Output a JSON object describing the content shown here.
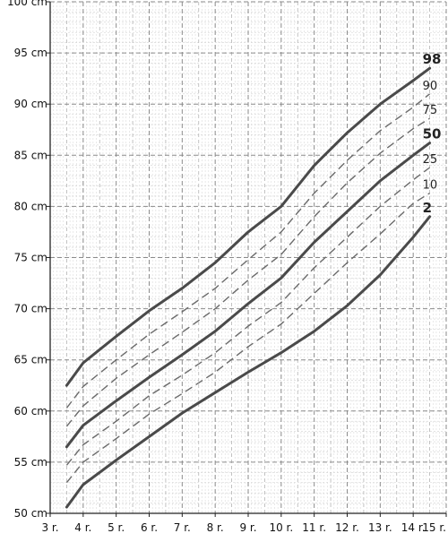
{
  "chart_data": {
    "type": "line",
    "title": "",
    "xlabel": "",
    "ylabel": "",
    "y_unit": "cm",
    "x_unit": "r.",
    "xlim": [
      3,
      15
    ],
    "ylim": [
      50,
      100
    ],
    "grid": true,
    "x_ticks": [
      {
        "value": 3,
        "label": "3 r."
      },
      {
        "value": 4,
        "label": "4 r."
      },
      {
        "value": 5,
        "label": "5 r."
      },
      {
        "value": 6,
        "label": "6 r."
      },
      {
        "value": 7,
        "label": "7 r."
      },
      {
        "value": 8,
        "label": "8 r."
      },
      {
        "value": 9,
        "label": "9 r."
      },
      {
        "value": 10,
        "label": "10 r."
      },
      {
        "value": 11,
        "label": "11 r."
      },
      {
        "value": 12,
        "label": "12 r."
      },
      {
        "value": 13,
        "label": "13 r."
      },
      {
        "value": 14,
        "label": "14 r."
      },
      {
        "value": 15,
        "label": "15 r."
      }
    ],
    "y_ticks": [
      {
        "value": 50,
        "label": "50 cm"
      },
      {
        "value": 55,
        "label": "55 cm"
      },
      {
        "value": 60,
        "label": "60 cm"
      },
      {
        "value": 65,
        "label": "65 cm"
      },
      {
        "value": 70,
        "label": "70 cm"
      },
      {
        "value": 75,
        "label": "75 cm"
      },
      {
        "value": 80,
        "label": "80 cm"
      },
      {
        "value": 85,
        "label": "85 cm"
      },
      {
        "value": 90,
        "label": "90 cm"
      },
      {
        "value": 95,
        "label": "95 cm"
      },
      {
        "value": 100,
        "label": "100 cm"
      }
    ],
    "x": [
      3.5,
      4,
      5,
      6,
      7,
      8,
      9,
      10,
      11,
      12,
      13,
      14,
      14.5
    ],
    "series": [
      {
        "name": "98",
        "major": true,
        "values": [
          62.5,
          64.7,
          67.3,
          69.8,
          72.0,
          74.5,
          77.5,
          80.0,
          84.0,
          87.2,
          90.0,
          92.3,
          93.5
        ]
      },
      {
        "name": "90",
        "major": false,
        "values": [
          60.3,
          62.4,
          65.0,
          67.5,
          69.7,
          72.0,
          74.8,
          77.5,
          81.3,
          84.5,
          87.4,
          89.7,
          91.0
        ]
      },
      {
        "name": "75",
        "major": false,
        "values": [
          58.5,
          60.5,
          63.2,
          65.5,
          67.7,
          70.0,
          72.8,
          75.3,
          79.0,
          82.3,
          85.2,
          87.6,
          88.6
        ]
      },
      {
        "name": "50",
        "major": true,
        "values": [
          56.5,
          58.6,
          61.0,
          63.3,
          65.5,
          67.8,
          70.5,
          73.0,
          76.5,
          79.5,
          82.5,
          85.0,
          86.2
        ]
      },
      {
        "name": "25",
        "major": false,
        "values": [
          54.7,
          56.7,
          59.0,
          61.5,
          63.5,
          65.7,
          68.3,
          70.6,
          74.0,
          77.0,
          80.0,
          82.6,
          83.8
        ]
      },
      {
        "name": "10",
        "major": false,
        "values": [
          53.0,
          55.0,
          57.3,
          59.7,
          61.7,
          63.8,
          66.3,
          68.5,
          71.5,
          74.5,
          77.3,
          80.3,
          81.3
        ]
      },
      {
        "name": "2",
        "major": true,
        "values": [
          50.6,
          52.8,
          55.2,
          57.5,
          59.8,
          61.8,
          63.8,
          65.7,
          67.8,
          70.3,
          73.3,
          77.0,
          79.0
        ]
      }
    ]
  }
}
